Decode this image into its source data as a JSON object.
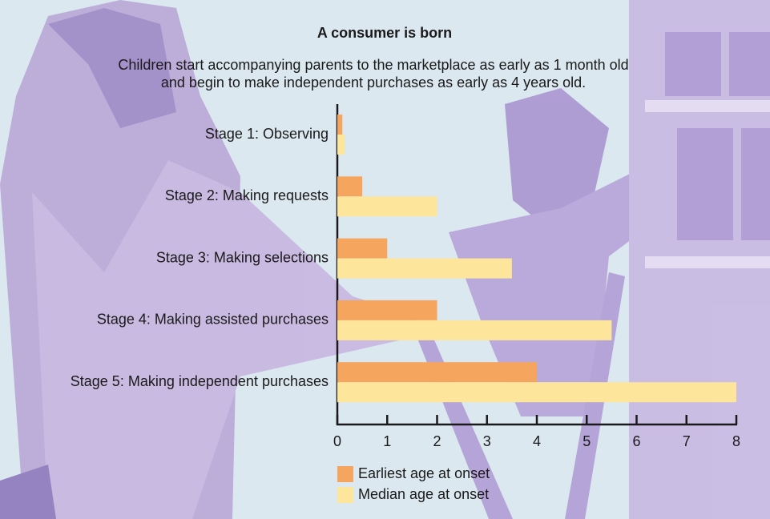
{
  "chart_data": {
    "type": "bar",
    "orientation": "horizontal",
    "title": "A consumer is born",
    "subtitle": [
      "Children start accompanying parents to the marketplace as early as 1 month old",
      "and begin to make independent purchases as early as 4 years old."
    ],
    "categories": [
      "Stage 1: Observing",
      "Stage 2: Making requests",
      "Stage 3: Making selections",
      "Stage 4: Making assisted purchases",
      "Stage 5: Making independent purchases"
    ],
    "series": [
      {
        "name": "Earliest age at onset",
        "color": "#f6a55e",
        "values": [
          0.1,
          0.5,
          1,
          2,
          4
        ]
      },
      {
        "name": "Median age at onset",
        "color": "#fde59b",
        "values": [
          0.15,
          2,
          3.5,
          5.5,
          8
        ]
      }
    ],
    "xlim": [
      0,
      8
    ],
    "xticks": [
      0,
      1,
      2,
      3,
      4,
      5,
      6,
      7,
      8
    ]
  }
}
